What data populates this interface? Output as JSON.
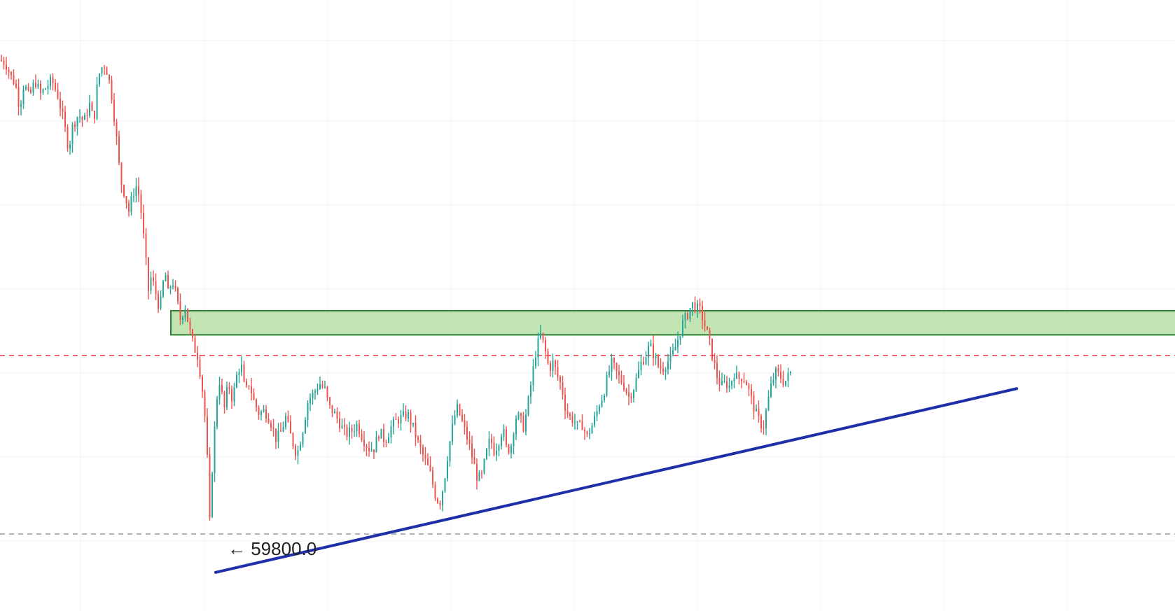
{
  "chart_data": {
    "type": "candlestick",
    "title": "",
    "xlabel": "",
    "ylabel": "",
    "grid": true,
    "ylim": [
      59000,
      75000
    ],
    "colors": {
      "up": "#26a69a",
      "down": "#ef5350",
      "trendline": "#1e2fa8",
      "zone_fill": "#b7e1a6",
      "zone_border": "#2e7d32",
      "resistance_dash": "#f23645",
      "low_dash": "#9598a1"
    },
    "price_path": [
      [
        0,
        74000
      ],
      [
        8,
        73900
      ],
      [
        16,
        73500
      ],
      [
        22,
        73300
      ],
      [
        28,
        72600
      ],
      [
        34,
        73300
      ],
      [
        42,
        72900
      ],
      [
        50,
        73400
      ],
      [
        58,
        73000
      ],
      [
        66,
        73200
      ],
      [
        74,
        73400
      ],
      [
        82,
        73000
      ],
      [
        90,
        72300
      ],
      [
        98,
        71400
      ],
      [
        104,
        72100
      ],
      [
        112,
        72400
      ],
      [
        120,
        72200
      ],
      [
        128,
        72700
      ],
      [
        134,
        72200
      ],
      [
        140,
        73500
      ],
      [
        148,
        73900
      ],
      [
        154,
        73600
      ],
      [
        160,
        72900
      ],
      [
        166,
        71800
      ],
      [
        172,
        70500
      ],
      [
        178,
        70100
      ],
      [
        184,
        69600
      ],
      [
        190,
        70100
      ],
      [
        196,
        70400
      ],
      [
        202,
        69500
      ],
      [
        208,
        68200
      ],
      [
        212,
        67300
      ],
      [
        216,
        67700
      ],
      [
        220,
        67400
      ],
      [
        224,
        67100
      ],
      [
        228,
        66700
      ],
      [
        232,
        67400
      ],
      [
        236,
        67800
      ],
      [
        240,
        67200
      ],
      [
        246,
        67600
      ],
      [
        252,
        67100
      ],
      [
        258,
        66400
      ],
      [
        264,
        66900
      ],
      [
        270,
        66200
      ],
      [
        276,
        65700
      ],
      [
        282,
        65400
      ],
      [
        288,
        64600
      ],
      [
        292,
        63800
      ],
      [
        296,
        62400
      ],
      [
        300,
        60300
      ],
      [
        304,
        62700
      ],
      [
        308,
        63600
      ],
      [
        312,
        64800
      ],
      [
        316,
        64400
      ],
      [
        320,
        63800
      ],
      [
        326,
        64600
      ],
      [
        332,
        64100
      ],
      [
        338,
        64800
      ],
      [
        344,
        65200
      ],
      [
        350,
        64300
      ],
      [
        356,
        64600
      ],
      [
        362,
        64100
      ],
      [
        370,
        63700
      ],
      [
        378,
        63800
      ],
      [
        386,
        63500
      ],
      [
        394,
        63000
      ],
      [
        400,
        63100
      ],
      [
        408,
        63600
      ],
      [
        416,
        63000
      ],
      [
        424,
        62500
      ],
      [
        432,
        63200
      ],
      [
        440,
        64100
      ],
      [
        448,
        64300
      ],
      [
        456,
        64600
      ],
      [
        464,
        64400
      ],
      [
        470,
        63900
      ],
      [
        478,
        63700
      ],
      [
        486,
        63400
      ],
      [
        494,
        63100
      ],
      [
        502,
        63200
      ],
      [
        510,
        63400
      ],
      [
        518,
        63000
      ],
      [
        526,
        62700
      ],
      [
        534,
        62700
      ],
      [
        542,
        63200
      ],
      [
        550,
        62900
      ],
      [
        558,
        63300
      ],
      [
        566,
        63500
      ],
      [
        574,
        63600
      ],
      [
        582,
        63700
      ],
      [
        590,
        63300
      ],
      [
        598,
        62800
      ],
      [
        606,
        62400
      ],
      [
        614,
        62000
      ],
      [
        622,
        61300
      ],
      [
        628,
        61100
      ],
      [
        634,
        61700
      ],
      [
        640,
        62600
      ],
      [
        646,
        63300
      ],
      [
        652,
        63900
      ],
      [
        658,
        63600
      ],
      [
        664,
        63200
      ],
      [
        670,
        62800
      ],
      [
        676,
        62300
      ],
      [
        682,
        61800
      ],
      [
        688,
        61900
      ],
      [
        694,
        62500
      ],
      [
        700,
        63000
      ],
      [
        706,
        62600
      ],
      [
        712,
        62900
      ],
      [
        718,
        63300
      ],
      [
        724,
        62600
      ],
      [
        730,
        62800
      ],
      [
        736,
        63600
      ],
      [
        742,
        63600
      ],
      [
        748,
        63300
      ],
      [
        754,
        64000
      ],
      [
        760,
        64800
      ],
      [
        766,
        65600
      ],
      [
        772,
        66000
      ],
      [
        778,
        65600
      ],
      [
        784,
        65000
      ],
      [
        790,
        65200
      ],
      [
        796,
        64800
      ],
      [
        802,
        64500
      ],
      [
        808,
        63800
      ],
      [
        814,
        63600
      ],
      [
        820,
        63500
      ],
      [
        826,
        63300
      ],
      [
        832,
        63400
      ],
      [
        838,
        63000
      ],
      [
        844,
        63300
      ],
      [
        850,
        63600
      ],
      [
        856,
        64000
      ],
      [
        862,
        64300
      ],
      [
        868,
        64800
      ],
      [
        874,
        65200
      ],
      [
        880,
        64900
      ],
      [
        886,
        64700
      ],
      [
        892,
        64500
      ],
      [
        898,
        64200
      ],
      [
        904,
        64400
      ],
      [
        910,
        64800
      ],
      [
        916,
        65200
      ],
      [
        922,
        65400
      ],
      [
        928,
        65700
      ],
      [
        934,
        65400
      ],
      [
        940,
        65100
      ],
      [
        946,
        65000
      ],
      [
        952,
        65200
      ],
      [
        958,
        65300
      ],
      [
        964,
        65600
      ],
      [
        970,
        66000
      ],
      [
        976,
        66400
      ],
      [
        982,
        66600
      ],
      [
        988,
        66900
      ],
      [
        994,
        66800
      ],
      [
        1000,
        66700
      ],
      [
        1006,
        66300
      ],
      [
        1012,
        65900
      ],
      [
        1018,
        65300
      ],
      [
        1024,
        64800
      ],
      [
        1030,
        64500
      ],
      [
        1036,
        64600
      ],
      [
        1042,
        64500
      ],
      [
        1048,
        64900
      ],
      [
        1054,
        64700
      ],
      [
        1060,
        64800
      ],
      [
        1066,
        64600
      ],
      [
        1072,
        64200
      ],
      [
        1078,
        63800
      ],
      [
        1084,
        63500
      ],
      [
        1090,
        63300
      ],
      [
        1096,
        64000
      ],
      [
        1102,
        64600
      ],
      [
        1108,
        64900
      ],
      [
        1114,
        64800
      ],
      [
        1120,
        64600
      ],
      [
        1126,
        64800
      ],
      [
        1132,
        65000
      ]
    ],
    "resistance_zone": {
      "low": 66000,
      "high": 66700
    },
    "resistance_level": 65400,
    "low_level": 59800,
    "trendline": {
      "start": [
        288,
        59600
      ],
      "end": [
        1356,
        64700
      ]
    },
    "annotations": [
      {
        "text": "← 59800.0",
        "price": 59800
      }
    ]
  }
}
